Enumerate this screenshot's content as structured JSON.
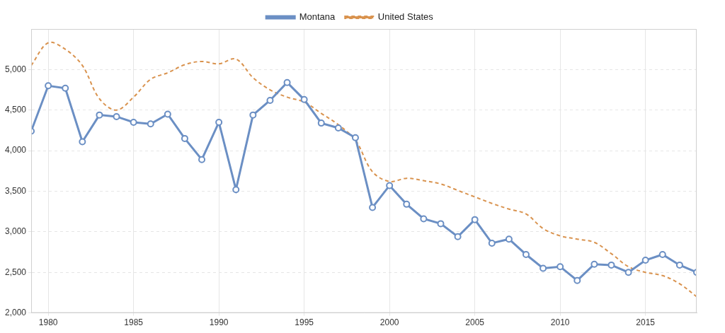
{
  "chart_data": {
    "type": "line",
    "x": [
      1979,
      1980,
      1981,
      1982,
      1983,
      1984,
      1985,
      1986,
      1987,
      1988,
      1989,
      1990,
      1991,
      1992,
      1993,
      1994,
      1995,
      1996,
      1997,
      1998,
      1999,
      2000,
      2001,
      2002,
      2003,
      2004,
      2005,
      2006,
      2007,
      2008,
      2009,
      2010,
      2011,
      2012,
      2013,
      2014,
      2015,
      2016,
      2017,
      2018
    ],
    "series": [
      {
        "name": "Montana",
        "color": "#6b8fc4",
        "marker": "circle",
        "line_style": "solid",
        "values": [
          4240,
          4800,
          4770,
          4110,
          4440,
          4420,
          4350,
          4330,
          4450,
          4150,
          3890,
          4350,
          3520,
          4440,
          4620,
          4840,
          4630,
          4340,
          4280,
          4160,
          3300,
          3570,
          3340,
          3160,
          3100,
          2940,
          3150,
          2860,
          2910,
          2720,
          2550,
          2570,
          2400,
          2600,
          2590,
          2500,
          2650,
          2720,
          2590,
          2500
        ]
      },
      {
        "name": "United States",
        "color": "#d9934f",
        "marker": "none",
        "line_style": "dashed",
        "values": [
          5050,
          5330,
          5250,
          5050,
          4640,
          4500,
          4660,
          4880,
          4960,
          5060,
          5100,
          5070,
          5130,
          4900,
          4750,
          4660,
          4600,
          4460,
          4320,
          4130,
          3740,
          3620,
          3660,
          3630,
          3590,
          3510,
          3430,
          3350,
          3280,
          3220,
          3040,
          2950,
          2910,
          2870,
          2730,
          2570,
          2500,
          2460,
          2360,
          2200
        ]
      }
    ],
    "xlim": [
      1979,
      2018
    ],
    "xticks": [
      1980,
      1985,
      1990,
      1995,
      2000,
      2005,
      2010,
      2015
    ],
    "ylim": [
      2000,
      5500
    ],
    "yticks": [
      {
        "value": 2000,
        "label": "2,000"
      },
      {
        "value": 2500,
        "label": "2,500"
      },
      {
        "value": 3000,
        "label": "3,000"
      },
      {
        "value": 3500,
        "label": "3,500"
      },
      {
        "value": 4000,
        "label": "4,000"
      },
      {
        "value": 4500,
        "label": "4,500"
      },
      {
        "value": 5000,
        "label": "5,000"
      }
    ],
    "grid": true,
    "legend": "top"
  }
}
